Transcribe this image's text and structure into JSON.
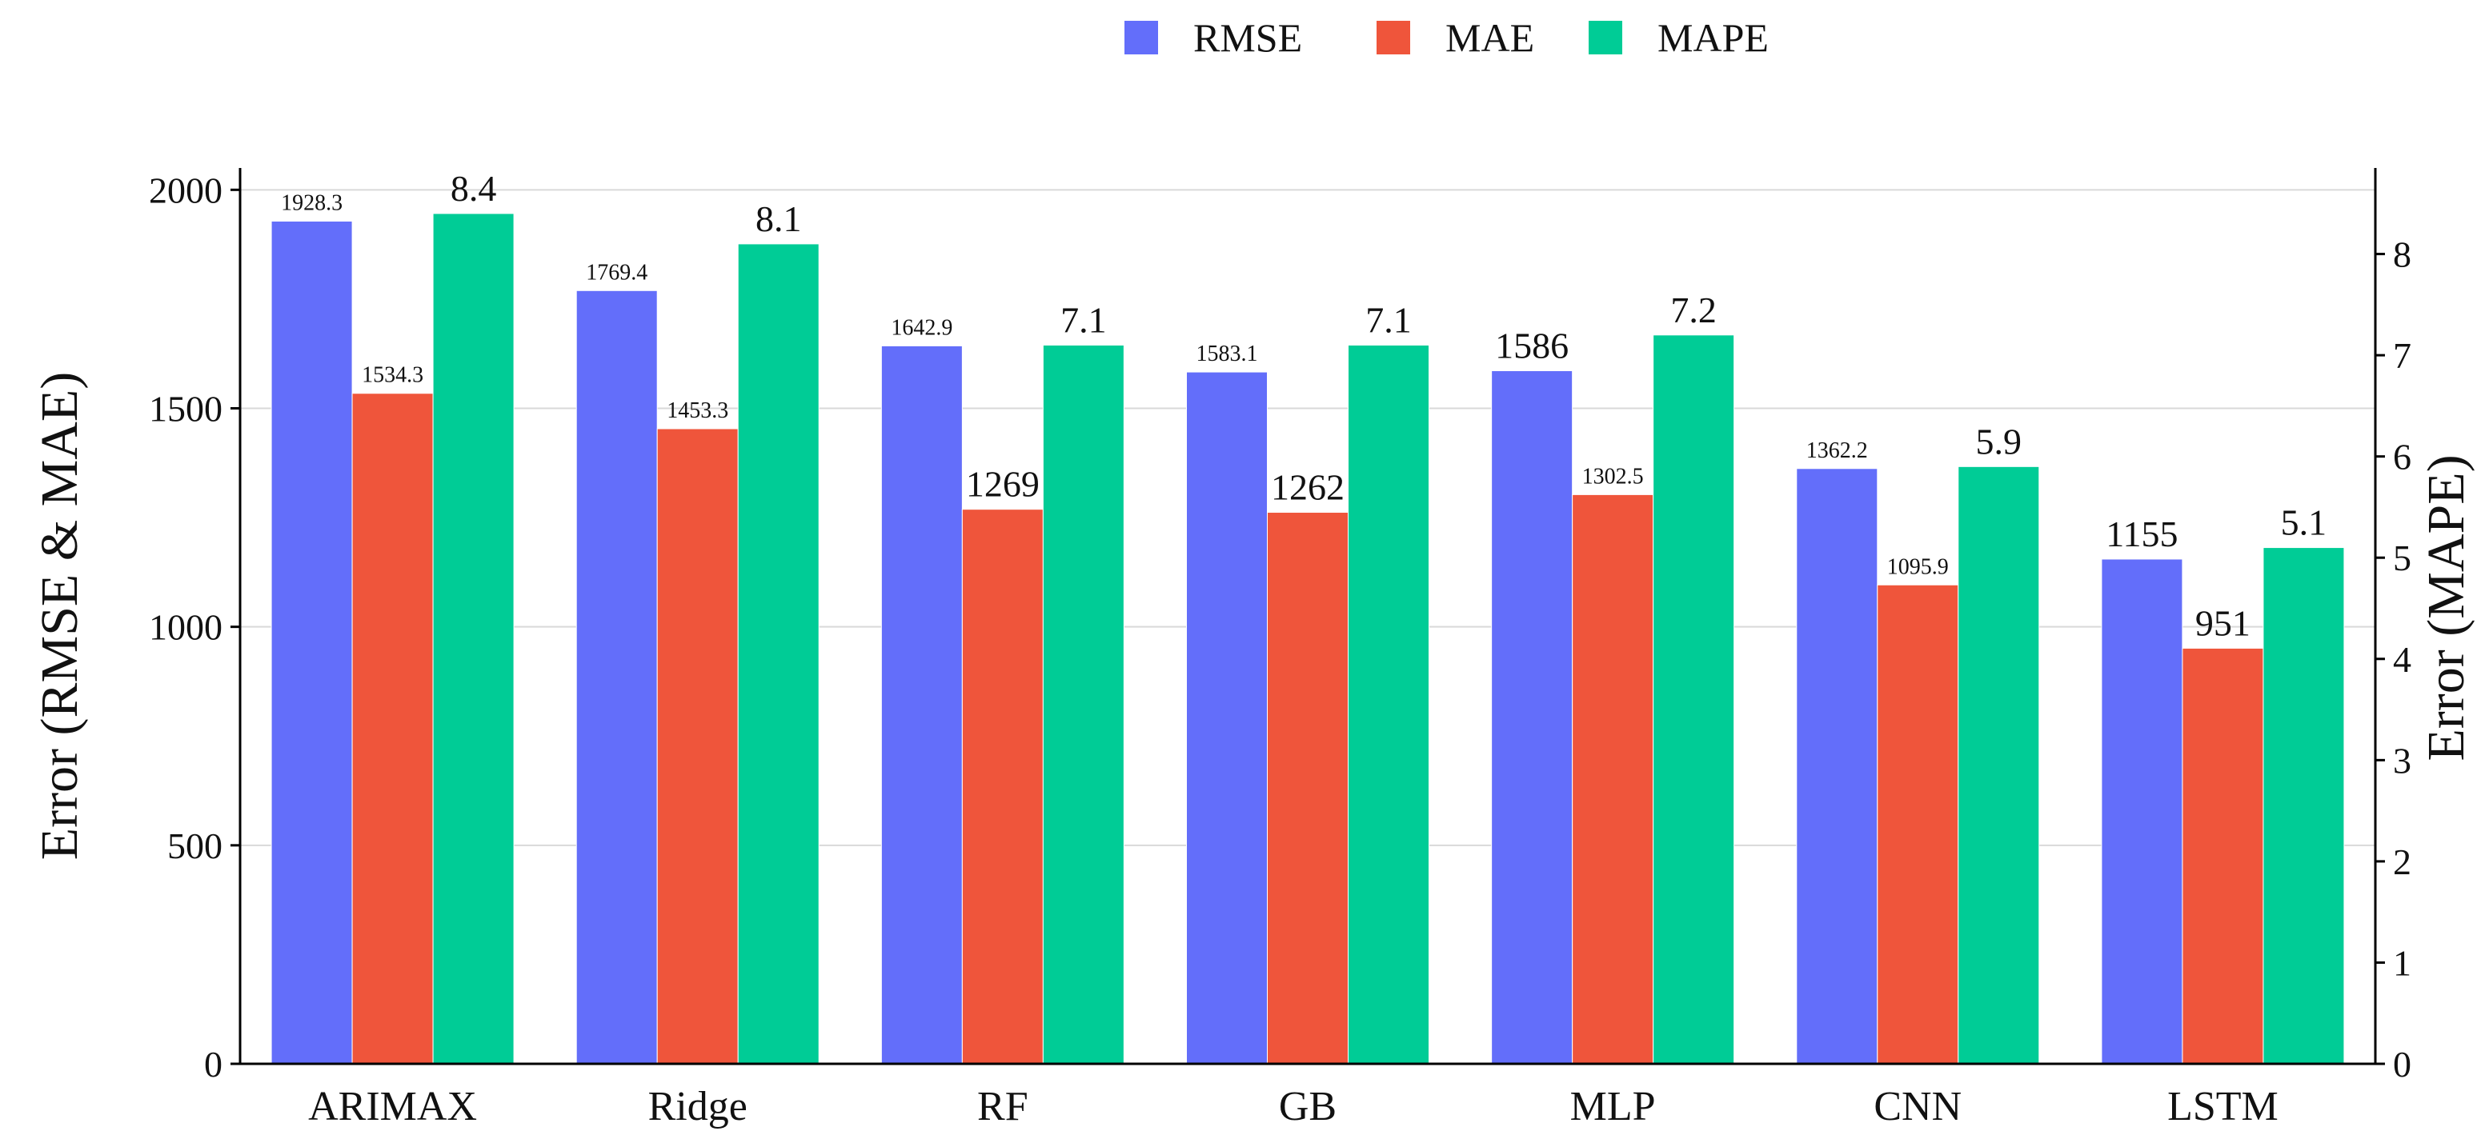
{
  "chart_data": {
    "type": "bar",
    "categories": [
      "ARIMAX",
      "Ridge",
      "RF",
      "GB",
      "MLP",
      "CNN",
      "LSTM"
    ],
    "series": [
      {
        "name": "RMSE",
        "axis": "left",
        "color": "#636efa",
        "values": [
          1928.3,
          1769.4,
          1642.9,
          1583.1,
          1586,
          1362.2,
          1155
        ],
        "labels": [
          "1928.3",
          "1769.4",
          "1642.9",
          "1583.1",
          "1586",
          "1362.2",
          "1155"
        ]
      },
      {
        "name": "MAE",
        "axis": "left",
        "color": "#ef553b",
        "values": [
          1534.3,
          1453.3,
          1269,
          1262,
          1302.5,
          1095.9,
          951
        ],
        "labels": [
          "1534.3",
          "1453.3",
          "1269",
          "1262",
          "1302.5",
          "1095.9",
          "951"
        ]
      },
      {
        "name": "MAPE",
        "axis": "right",
        "color": "#00cc96",
        "values": [
          8.4,
          8.1,
          7.1,
          7.1,
          7.2,
          5.9,
          5.1
        ],
        "labels": [
          "8.4",
          "8.1",
          "7.1",
          "7.1",
          "7.2",
          "5.9",
          "5.1"
        ]
      }
    ],
    "ylabel": "Error (RMSE & MAE)",
    "y2label": "Error (MAPE)",
    "ylim": [
      0,
      2050
    ],
    "y2lim": [
      0,
      8.85
    ],
    "yticks": [
      0,
      500,
      1000,
      1500,
      2000
    ],
    "y2ticks": [
      0,
      1,
      2,
      3,
      4,
      5,
      6,
      7,
      8
    ],
    "grid": true,
    "legend_position": "top-center"
  }
}
